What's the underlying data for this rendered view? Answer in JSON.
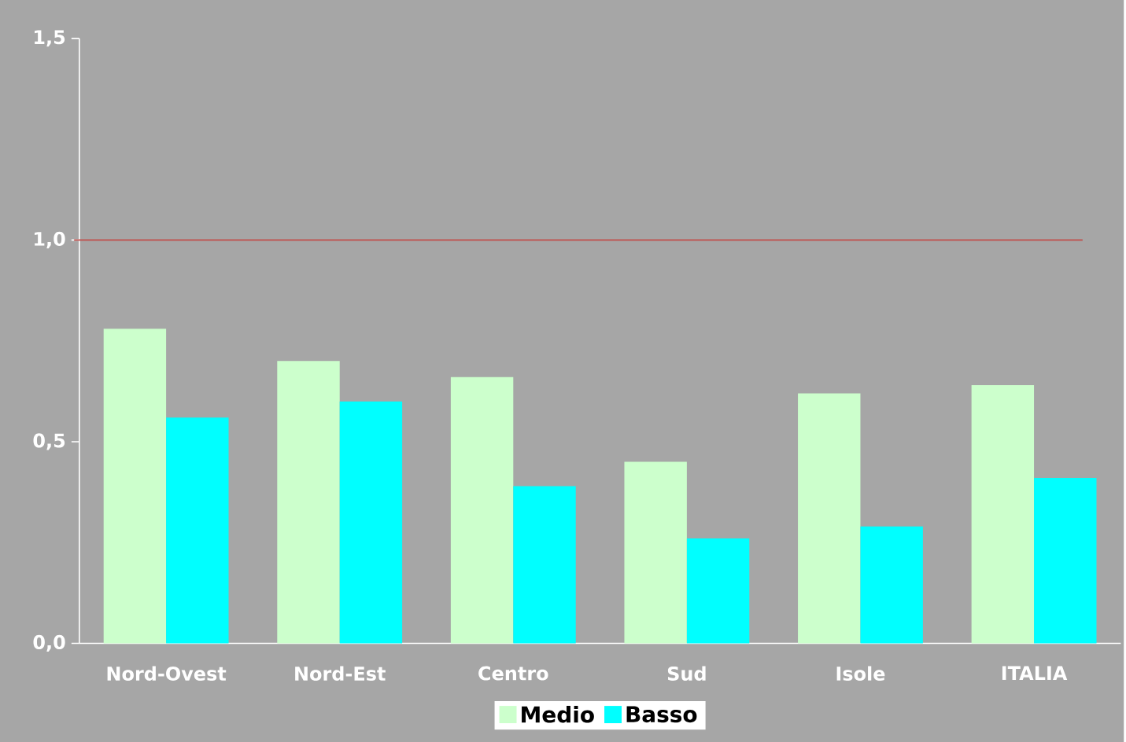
{
  "chart_data": {
    "type": "bar",
    "categories": [
      "Nord-Ovest",
      "Nord-Est",
      "Centro",
      "Sud",
      "Isole",
      "ITALIA"
    ],
    "series": [
      {
        "name": "Medio",
        "color": "#ccffcc",
        "values": [
          0.78,
          0.7,
          0.66,
          0.45,
          0.62,
          0.64
        ]
      },
      {
        "name": "Basso",
        "color": "#00ffff",
        "values": [
          0.56,
          0.6,
          0.39,
          0.26,
          0.29,
          0.41
        ]
      }
    ],
    "ylim": [
      0,
      1.5
    ],
    "yticks": [
      {
        "value": 0,
        "label": "0,0"
      },
      {
        "value": 0.5,
        "label": "0,5"
      },
      {
        "value": 1.0,
        "label": "1,0"
      },
      {
        "value": 1.5,
        "label": "1,5"
      }
    ],
    "ref_lines": [
      {
        "axis": "y",
        "value": 1.0,
        "color": "#c0504d"
      }
    ],
    "grid": false,
    "legend": "bottom"
  }
}
